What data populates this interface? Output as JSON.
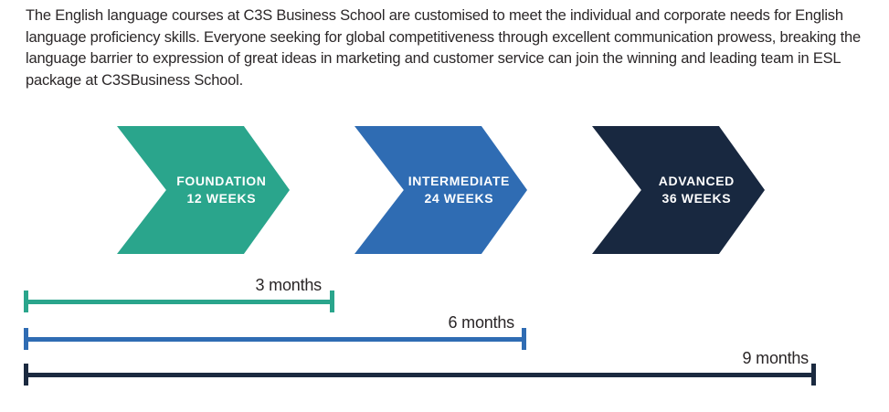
{
  "intro": {
    "text": "The English language courses at C3S Business School are customised to meet the individual and corporate needs for English language proficiency skills. Everyone seeking for global competitiveness through excellent communication prowess, breaking the language barrier to expression of great ideas in marketing and customer service can join the winning and leading team in ESL package at C3SBusiness School."
  },
  "stages": [
    {
      "name": "FOUNDATION",
      "duration": "12 WEEKS",
      "color": "#2aa58c"
    },
    {
      "name": "INTERMEDIATE",
      "duration": "24 WEEKS",
      "color": "#2f6cb3"
    },
    {
      "name": "ADVANCED",
      "duration": "36 WEEKS",
      "color": "#182840"
    }
  ],
  "timeline": {
    "bars": [
      {
        "label": "3 months",
        "months": 3,
        "color": "#2aa58c"
      },
      {
        "label": "6 months",
        "months": 6,
        "color": "#2f6cb3"
      },
      {
        "label": "9 months",
        "months": 9,
        "color": "#1b2a40"
      }
    ]
  }
}
